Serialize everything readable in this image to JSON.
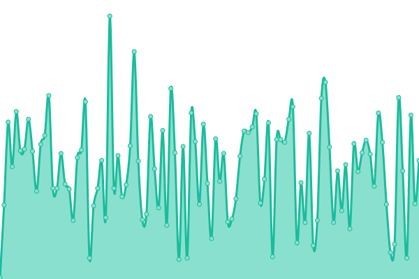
{
  "chart_data": {
    "type": "area",
    "title": "",
    "xlabel": "",
    "ylabel": "",
    "ylim": [
      0,
      400
    ],
    "grid": false,
    "axes_visible": false,
    "legend": "none",
    "curve": "smooth",
    "show_points": true,
    "colors": {
      "line": "#1abc9c",
      "fill": "#8ae0cf",
      "point_fill": "#8ae0cf",
      "background": "#ffffff"
    },
    "values": [
      2,
      106,
      225,
      161,
      240,
      184,
      186,
      229,
      183,
      126,
      193,
      206,
      263,
      130,
      130,
      180,
      136,
      129,
      84,
      174,
      185,
      254,
      30,
      105,
      130,
      170,
      88,
      377,
      130,
      177,
      118,
      135,
      191,
      326,
      169,
      85,
      93,
      233,
      158,
      102,
      213,
      77,
      273,
      181,
      28,
      190,
      30,
      238,
      197,
      107,
      222,
      137,
      58,
      201,
      140,
      180,
      82,
      86,
      115,
      176,
      212,
      210,
      218,
      237,
      109,
      143,
      224,
      32,
      200,
      200,
      196,
      229,
      247,
      52,
      138,
      81,
      209,
      48,
      84,
      259,
      282,
      189,
      81,
      155,
      98,
      164,
      72,
      194,
      154,
      181,
      199,
      179,
      133,
      238,
      196,
      107,
      38,
      50,
      260,
      155,
      30,
      235,
      108,
      170
    ]
  }
}
